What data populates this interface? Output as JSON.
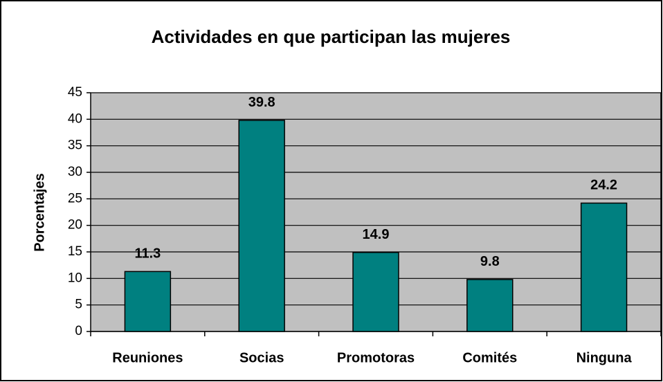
{
  "chart_data": {
    "type": "bar",
    "title": "Actividades en que participan las mujeres",
    "y_label": "Porcentajes",
    "categories": [
      "Reuniones",
      "Socias",
      "Promotoras",
      "Comités",
      "Ninguna"
    ],
    "values": [
      11.3,
      39.8,
      14.9,
      9.8,
      24.2
    ],
    "color": "#008080",
    "ylim": [
      0,
      45
    ],
    "yticks": [
      0,
      5,
      10,
      15,
      20,
      25,
      30,
      35,
      40,
      45
    ],
    "grid": true
  }
}
